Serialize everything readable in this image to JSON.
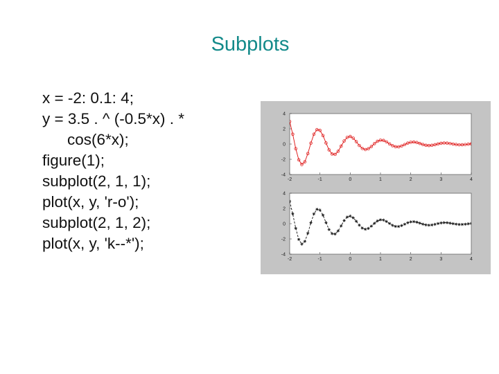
{
  "slide": {
    "title": "Subplots",
    "code_lines": [
      "x = -2: 0.1: 4;",
      "y = 3.5 . ^ (-0.5*x) . *",
      "cos(6*x);",
      "figure(1);",
      "subplot(2, 1, 1);",
      "plot(x, y, 'r-o');",
      "subplot(2, 1, 2);",
      "plot(x, y, 'k--*');"
    ]
  },
  "chart_data": [
    {
      "type": "line",
      "title": "",
      "xlabel": "",
      "ylabel": "",
      "function": "y = 3.5^(-0.5*x) * cos(6*x)",
      "x_range": [
        -2,
        4
      ],
      "x_step": 0.1,
      "xlim": [
        -2,
        4
      ],
      "ylim": [
        -4,
        4
      ],
      "xticks": [
        "-2",
        "-1",
        "0",
        "1",
        "2",
        "3",
        "4"
      ],
      "yticks": [
        "4",
        "2",
        "0",
        "-2",
        "-4"
      ],
      "style": {
        "color": "#dd1111",
        "line": "solid",
        "marker": "circle"
      }
    },
    {
      "type": "line",
      "title": "",
      "xlabel": "",
      "ylabel": "",
      "function": "y = 3.5^(-0.5*x) * cos(6*x)",
      "x_range": [
        -2,
        4
      ],
      "x_step": 0.1,
      "xlim": [
        -2,
        4
      ],
      "ylim": [
        -4,
        4
      ],
      "xticks": [
        "-2",
        "-1",
        "0",
        "1",
        "2",
        "3",
        "4"
      ],
      "yticks": [
        "4",
        "2",
        "0",
        "-2",
        "-4"
      ],
      "style": {
        "color": "#111111",
        "line": "dashed",
        "marker": "star"
      }
    }
  ],
  "colors": {
    "title": "#138a8a",
    "text": "#111111",
    "figure_background": "#c4c4c4"
  }
}
